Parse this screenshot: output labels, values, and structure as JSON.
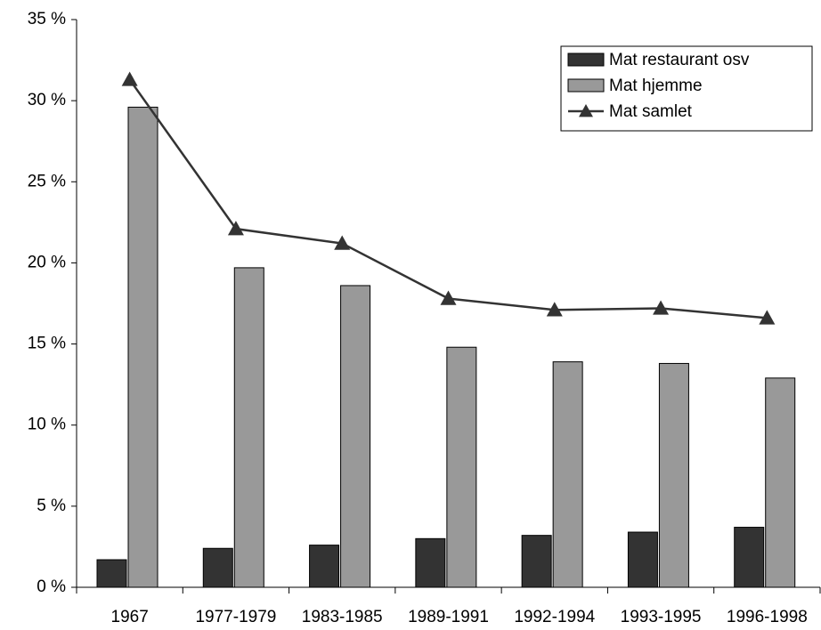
{
  "chart_data": {
    "type": "bar-line",
    "categories": [
      "1967",
      "1977-1979",
      "1983-1985",
      "1989-1991",
      "1992-1994",
      "1993-1995",
      "1996-1998"
    ],
    "series": [
      {
        "name": "Mat restaurant osv",
        "type": "bar",
        "color": "#333333",
        "values": [
          1.7,
          2.4,
          2.6,
          3.0,
          3.2,
          3.4,
          3.7
        ]
      },
      {
        "name": "Mat hjemme",
        "type": "bar",
        "color": "#999999",
        "values": [
          29.6,
          19.7,
          18.6,
          14.8,
          13.9,
          13.8,
          12.9
        ]
      },
      {
        "name": "Mat samlet",
        "type": "line",
        "color": "#333333",
        "values": [
          31.3,
          22.1,
          21.2,
          17.8,
          17.1,
          17.2,
          16.6
        ]
      }
    ],
    "ylim": [
      0,
      35
    ],
    "yticks": [
      {
        "value": 0,
        "label": "0 %"
      },
      {
        "value": 5,
        "label": "5 %"
      },
      {
        "value": 10,
        "label": "10 %"
      },
      {
        "value": 15,
        "label": "15 %"
      },
      {
        "value": 20,
        "label": "20 %"
      },
      {
        "value": 25,
        "label": "25 %"
      },
      {
        "value": 30,
        "label": "30 %"
      },
      {
        "value": 35,
        "label": "35 %"
      }
    ],
    "grid": false,
    "legend": "top-right"
  }
}
